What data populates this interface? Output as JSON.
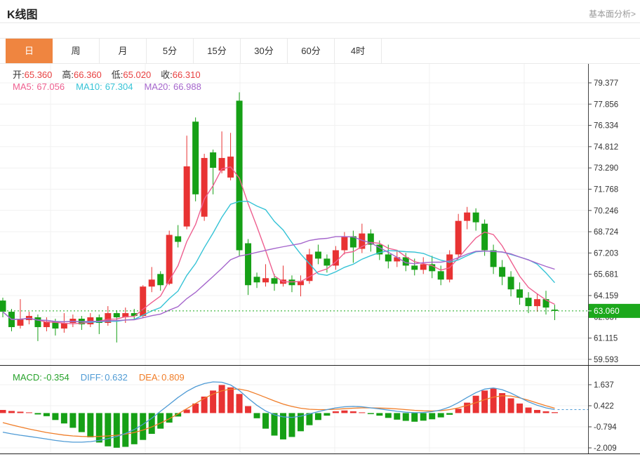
{
  "header": {
    "title": "K线图",
    "link_label": "基本面分析>"
  },
  "tabs": {
    "items": [
      "日",
      "周",
      "月",
      "5分",
      "15分",
      "30分",
      "60分",
      "4时"
    ],
    "active_index": 0
  },
  "ohlc": {
    "open_label": "开:",
    "open": "65.360",
    "high_label": "高:",
    "high": "66.360",
    "low_label": "低:",
    "low": "65.020",
    "close_label": "收:",
    "close": "66.310"
  },
  "ma_header": {
    "ma5_label": "MA5:",
    "ma5": "67.056",
    "ma10_label": "MA10:",
    "ma10": "67.304",
    "ma20_label": "MA20:",
    "ma20": "66.988"
  },
  "macd_header": {
    "macd_label": "MACD:",
    "macd": "-0.354",
    "diff_label": "DIFF:",
    "diff": "0.632",
    "dea_label": "DEA:",
    "dea": "0.809"
  },
  "colors": {
    "up_red": "#e83333",
    "down_green": "#16a016",
    "tab_active_bg": "#ef8540",
    "value_red": "#e84040",
    "label_dark": "#333333",
    "link_gray": "#999999",
    "ma5_pink": "#ee5f8f",
    "ma10_cyan": "#35c3d6",
    "ma20_purple": "#a566cc",
    "diff_blue": "#4f9bd5",
    "dea_orange": "#f07d28",
    "macd_text_green": "#27a22b",
    "price_tag_bg": "#1ca81c",
    "price_line_green": "#1daa1d",
    "grid": "#f1f1f1",
    "axis": "#444444",
    "divider_dark": "#222222",
    "tick_text": "#333333"
  },
  "chart_data": {
    "type": "candlestick",
    "interval": "日",
    "convention": "red=up green=down",
    "grid": true,
    "price_axis_ticks": [
      79.377,
      77.856,
      76.334,
      74.812,
      73.29,
      71.768,
      70.246,
      68.724,
      67.203,
      65.681,
      64.159,
      62.637,
      61.115,
      59.593
    ],
    "current_price": 63.06,
    "current_price_label": "63.060",
    "ma_periods": [
      5,
      10,
      20
    ],
    "candle_format": [
      "open",
      "high",
      "low",
      "close"
    ],
    "candles": [
      [
        63.8,
        64.0,
        62.6,
        63.0
      ],
      [
        63.0,
        63.2,
        61.6,
        61.9
      ],
      [
        62.0,
        63.9,
        61.8,
        62.5
      ],
      [
        62.4,
        63.0,
        62.1,
        62.7
      ],
      [
        62.6,
        62.8,
        60.9,
        61.9
      ],
      [
        61.9,
        62.6,
        61.6,
        62.3
      ],
      [
        62.3,
        62.5,
        61.3,
        61.8
      ],
      [
        61.8,
        62.9,
        61.5,
        62.2
      ],
      [
        62.2,
        62.8,
        61.9,
        62.5
      ],
      [
        62.5,
        62.7,
        61.7,
        62.1
      ],
      [
        62.1,
        62.9,
        61.9,
        62.6
      ],
      [
        62.6,
        62.8,
        61.4,
        62.2
      ],
      [
        62.2,
        63.4,
        62.0,
        62.9
      ],
      [
        62.9,
        63.1,
        60.8,
        62.6
      ],
      [
        62.6,
        63.3,
        62.2,
        62.9
      ],
      [
        62.9,
        63.2,
        62.4,
        62.7
      ],
      [
        62.7,
        64.9,
        62.6,
        64.8
      ],
      [
        64.8,
        66.2,
        64.4,
        65.3
      ],
      [
        65.7,
        65.9,
        64.5,
        64.9
      ],
      [
        65.0,
        68.8,
        64.9,
        68.5
      ],
      [
        68.4,
        69.2,
        67.6,
        68.0
      ],
      [
        69.1,
        75.6,
        68.9,
        73.4
      ],
      [
        76.6,
        76.9,
        70.9,
        71.4
      ],
      [
        69.8,
        74.3,
        69.5,
        74.0
      ],
      [
        74.4,
        74.6,
        71.4,
        73.3
      ],
      [
        73.1,
        75.9,
        72.9,
        74.0
      ],
      [
        72.6,
        75.8,
        72.4,
        74.1
      ],
      [
        78.1,
        78.7,
        67.0,
        67.4
      ],
      [
        67.9,
        68.2,
        64.2,
        64.9
      ],
      [
        65.5,
        65.8,
        64.7,
        65.1
      ],
      [
        65.1,
        66.4,
        64.8,
        65.4
      ],
      [
        65.4,
        65.7,
        64.5,
        65.0
      ],
      [
        65.0,
        66.3,
        64.8,
        65.3
      ],
      [
        65.3,
        65.6,
        64.4,
        64.9
      ],
      [
        64.9,
        65.6,
        64.1,
        65.2
      ],
      [
        65.2,
        67.5,
        65.0,
        67.1
      ],
      [
        67.3,
        67.8,
        66.4,
        66.8
      ],
      [
        66.8,
        67.1,
        65.8,
        66.3
      ],
      [
        66.3,
        67.7,
        66.0,
        67.4
      ],
      [
        67.4,
        68.7,
        67.1,
        68.4
      ],
      [
        68.4,
        68.8,
        66.5,
        67.6
      ],
      [
        67.5,
        69.3,
        67.2,
        68.6
      ],
      [
        68.6,
        68.9,
        67.3,
        67.8
      ],
      [
        67.8,
        68.1,
        66.7,
        67.1
      ],
      [
        67.1,
        67.8,
        66.1,
        66.6
      ],
      [
        66.6,
        67.4,
        66.2,
        66.9
      ],
      [
        66.9,
        67.2,
        65.9,
        66.3
      ],
      [
        66.3,
        66.8,
        65.6,
        66.0
      ],
      [
        66.0,
        66.9,
        65.7,
        66.4
      ],
      [
        66.4,
        67.0,
        65.4,
        65.9
      ],
      [
        65.9,
        66.3,
        64.9,
        65.3
      ],
      [
        65.3,
        67.4,
        65.1,
        67.1
      ],
      [
        67.1,
        70.0,
        66.9,
        69.5
      ],
      [
        69.5,
        70.5,
        68.9,
        70.1
      ],
      [
        70.1,
        70.4,
        68.8,
        69.4
      ],
      [
        69.3,
        69.6,
        67.0,
        67.4
      ],
      [
        67.4,
        67.8,
        65.7,
        66.2
      ],
      [
        66.2,
        66.7,
        64.9,
        65.5
      ],
      [
        65.5,
        65.9,
        64.1,
        64.6
      ],
      [
        64.6,
        65.1,
        63.5,
        64.0
      ],
      [
        64.0,
        64.4,
        62.9,
        63.4
      ],
      [
        63.4,
        64.3,
        63.0,
        63.9
      ],
      [
        63.9,
        64.5,
        62.8,
        63.3
      ],
      [
        63.15,
        63.5,
        62.4,
        63.06
      ]
    ],
    "macd": {
      "axis_ticks": [
        1.637,
        0.422,
        -0.794,
        -2.009
      ],
      "hist": [
        0.18,
        0.12,
        0.08,
        0.03,
        -0.08,
        -0.18,
        -0.4,
        -0.6,
        -0.85,
        -1.1,
        -1.4,
        -1.7,
        -1.92,
        -2.0,
        -1.95,
        -1.8,
        -1.55,
        -1.2,
        -0.9,
        -0.55,
        -0.2,
        0.2,
        0.55,
        0.95,
        1.3,
        1.62,
        1.48,
        1.1,
        0.4,
        -0.3,
        -0.9,
        -1.3,
        -1.52,
        -1.38,
        -1.05,
        -0.7,
        -0.4,
        -0.15,
        0.1,
        0.15,
        0.1,
        0.04,
        -0.06,
        -0.15,
        -0.28,
        -0.38,
        -0.45,
        -0.5,
        -0.44,
        -0.36,
        -0.25,
        -0.1,
        0.25,
        0.6,
        1.0,
        1.3,
        1.42,
        1.15,
        0.85,
        0.55,
        0.32,
        0.18,
        0.1,
        0.05
      ],
      "diff": [
        -1.1,
        -1.2,
        -1.28,
        -1.35,
        -1.42,
        -1.5,
        -1.58,
        -1.64,
        -1.68,
        -1.68,
        -1.65,
        -1.58,
        -1.48,
        -1.35,
        -1.18,
        -0.95,
        -0.65,
        -0.3,
        0.1,
        0.5,
        0.9,
        1.25,
        1.52,
        1.7,
        1.8,
        1.78,
        1.62,
        1.3,
        0.85,
        0.45,
        0.12,
        -0.1,
        -0.22,
        -0.25,
        -0.18,
        -0.05,
        0.08,
        0.2,
        0.3,
        0.36,
        0.38,
        0.36,
        0.3,
        0.24,
        0.17,
        0.1,
        0.05,
        0.02,
        0.03,
        0.08,
        0.18,
        0.35,
        0.6,
        0.9,
        1.18,
        1.38,
        1.45,
        1.35,
        1.15,
        0.9,
        0.65,
        0.45,
        0.3,
        0.2
      ],
      "dea": [
        -0.55,
        -0.68,
        -0.8,
        -0.92,
        -1.02,
        -1.12,
        -1.2,
        -1.27,
        -1.32,
        -1.35,
        -1.36,
        -1.35,
        -1.32,
        -1.28,
        -1.22,
        -1.12,
        -0.98,
        -0.8,
        -0.58,
        -0.33,
        -0.05,
        0.25,
        0.55,
        0.85,
        1.1,
        1.28,
        1.38,
        1.38,
        1.28,
        1.1,
        0.9,
        0.7,
        0.52,
        0.38,
        0.28,
        0.22,
        0.2,
        0.2,
        0.22,
        0.25,
        0.28,
        0.3,
        0.3,
        0.29,
        0.27,
        0.24,
        0.2,
        0.16,
        0.13,
        0.12,
        0.14,
        0.2,
        0.3,
        0.44,
        0.6,
        0.78,
        0.92,
        1.0,
        0.98,
        0.88,
        0.74,
        0.58,
        0.42,
        0.28
      ]
    }
  }
}
